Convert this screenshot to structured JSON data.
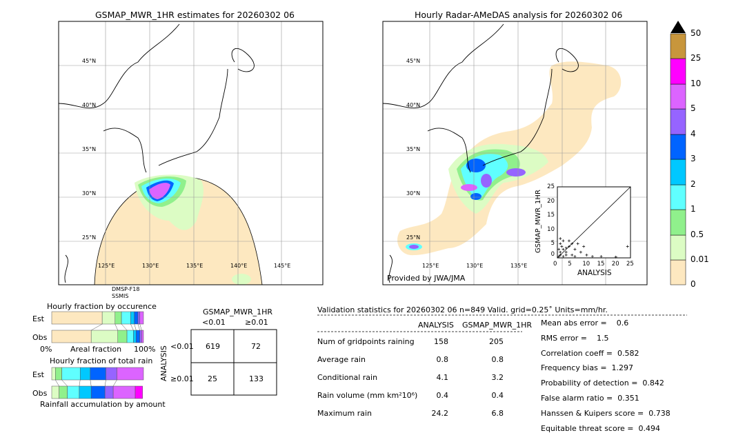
{
  "left_map": {
    "title": "GSMAP_MWR_1HR estimates for 20260302 06",
    "sensor": [
      "DMSP-F18",
      "SSMIS"
    ]
  },
  "right_map": {
    "title": "Hourly Radar-AMeDAS analysis for 20260302 06",
    "credit": "Provided by JWA/JMA"
  },
  "lat_labels": [
    "45°N",
    "40°N",
    "35°N",
    "30°N",
    "25°N"
  ],
  "lon_labels": [
    "125°E",
    "130°E",
    "135°E",
    "140°E",
    "145°E"
  ],
  "colorbar": {
    "labels": [
      "0",
      "0.01",
      "0.5",
      "1",
      "2",
      "3",
      "4",
      "5",
      "10",
      "25",
      "50"
    ],
    "colors": [
      "#fde8c0",
      "#dcfcc4",
      "#90f08c",
      "#60ffff",
      "#00c8ff",
      "#0064ff",
      "#9664ff",
      "#dc64ff",
      "#ff00ff",
      "#c8963c"
    ],
    "over_color": "#000000"
  },
  "scatter": {
    "ylabel": "GSMAP_MWR_1HR",
    "xlabel": "ANALYSIS",
    "ticks": [
      "0",
      "5",
      "10",
      "15",
      "20",
      "25"
    ]
  },
  "occurrence": {
    "title": "Hourly fraction by occurence",
    "est": "Est",
    "obs": "Obs",
    "x0": "0%",
    "xlabel": "Areal fraction",
    "x1": "100%",
    "est_fractions": [
      0.55,
      0.14,
      0.07,
      0.1,
      0.04,
      0.04,
      0.02,
      0.04
    ],
    "obs_fractions": [
      0.43,
      0.29,
      0.1,
      0.07,
      0.03,
      0.04,
      0.02,
      0.02
    ]
  },
  "total_rain": {
    "title": "Hourly fraction of total rain",
    "est": "Est",
    "obs": "Obs",
    "xlabel": "Rainfall accumulation by amount",
    "est_fractions": [
      0.04,
      0.07,
      0.2,
      0.11,
      0.17,
      0.12,
      0.29
    ],
    "obs_fractions": [
      0.08,
      0.09,
      0.13,
      0.13,
      0.15,
      0.09,
      0.24,
      0.08
    ]
  },
  "contingency": {
    "title": "GSMAP_MWR_1HR",
    "col_labels": [
      "<0.01",
      "≥0.01"
    ],
    "row_axis": "ANALYSIS",
    "row_labels": [
      "<0.01",
      "≥0.01"
    ],
    "cells": [
      [
        "619",
        "72"
      ],
      [
        "25",
        "133"
      ]
    ]
  },
  "validation": {
    "header": "Validation statistics for 20260302 06  n=849 Valid. grid=0.25˚ Units=mm/hr.",
    "columns": [
      "ANALYSIS",
      "GSMAP_MWR_1HR"
    ],
    "rows": [
      {
        "label": "Num of gridpoints raining",
        "a": "158",
        "g": "205"
      },
      {
        "label": "Average rain",
        "a": "0.8",
        "g": "0.8"
      },
      {
        "label": "Conditional rain",
        "a": "4.1",
        "g": "3.2"
      },
      {
        "label": "Rain volume (mm km²10⁶)",
        "a": "0.4",
        "g": "0.4"
      },
      {
        "label": "Maximum rain",
        "a": "24.2",
        "g": "6.8"
      }
    ],
    "scores": [
      "Mean abs error =    0.6",
      "RMS error =    1.5",
      "Correlation coeff =  0.582",
      "Frequency bias =  1.297",
      "Probability of detection =  0.842",
      "False alarm ratio =  0.351",
      "Hanssen & Kuipers score =  0.738",
      "Equitable threat score =  0.494"
    ]
  }
}
